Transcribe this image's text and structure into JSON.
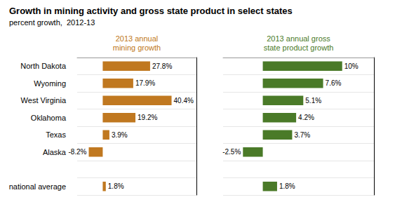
{
  "chart_data": [
    {
      "type": "bar",
      "orientation": "horizontal",
      "title": "Growth in mining activity and gross state product in select states",
      "subtitle": "percent growth,  2012-13",
      "xlabel": "2013 annual\nmining growth",
      "categories": [
        "North Dakota",
        "Wyoming",
        "West Virginia",
        "Oklahoma",
        "Texas",
        "Alaska",
        null,
        "national average"
      ],
      "values": [
        27.8,
        17.9,
        40.4,
        19.2,
        3.9,
        -8.2,
        null,
        1.8
      ],
      "value_labels": [
        "27.8%",
        "17.9%",
        "40.4%",
        "19.2%",
        "3.9%",
        "-8.2%",
        null,
        "1.8%"
      ],
      "color": "#C07820",
      "xlim": [
        -15,
        55
      ],
      "data_labels": true,
      "tick_labels": "y",
      "grid": true
    },
    {
      "type": "bar",
      "orientation": "horizontal",
      "xlabel": "2013 annual gross\nstate product growth",
      "categories": [
        "North Dakota",
        "Wyoming",
        "West Virginia",
        "Oklahoma",
        "Texas",
        "Alaska",
        null,
        "national average"
      ],
      "values": [
        10.0,
        7.6,
        5.1,
        4.2,
        3.7,
        -2.5,
        null,
        1.8
      ],
      "value_labels": [
        "10%",
        "7.6%",
        "5.1%",
        "4.2%",
        "3.7%",
        "-2.5%",
        null,
        "1.8%"
      ],
      "color": "#4A7A28",
      "xlim": [
        -5,
        14
      ],
      "data_labels": true,
      "tick_labels": false,
      "grid": true
    }
  ]
}
